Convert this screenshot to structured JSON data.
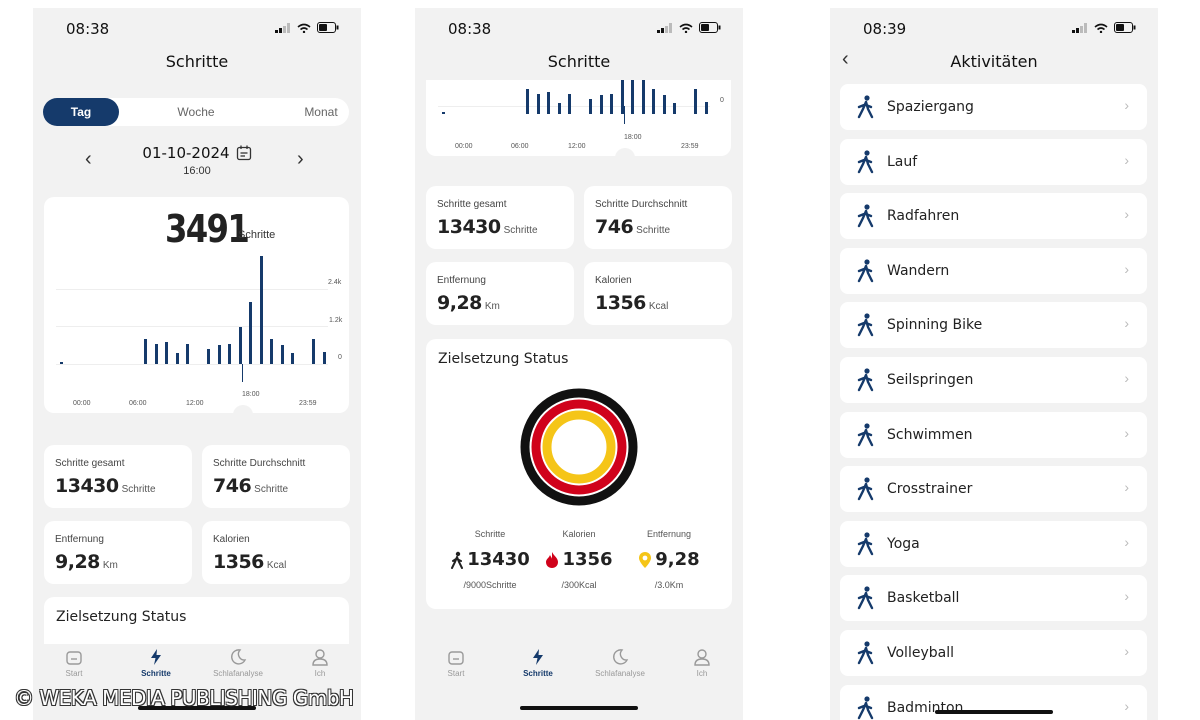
{
  "status_bar": {
    "time1": "08:38",
    "time2": "08:38",
    "time3": "08:39"
  },
  "screen1": {
    "title": "Schritte",
    "segments": [
      "Tag",
      "Woche",
      "Monat"
    ],
    "date": "01-10-2024",
    "time": "16:00",
    "steps_value": "3491",
    "steps_unit": "Schritte",
    "y_ticks": [
      "2.4k",
      "1.2k",
      "0"
    ],
    "x_ticks": [
      "00:00",
      "06:00",
      "12:00",
      "18:00",
      "23:59"
    ],
    "stats": {
      "total_label": "Schritte gesamt",
      "total_value": "13430",
      "total_unit": "Schritte",
      "avg_label": "Schritte Durchschnitt",
      "avg_value": "746",
      "avg_unit": "Schritte",
      "dist_label": "Entfernung",
      "dist_value": "9,28",
      "dist_unit": "Km",
      "cal_label": "Kalorien",
      "cal_value": "1356",
      "cal_unit": "Kcal"
    },
    "goal_title": "Zielsetzung Status"
  },
  "screen2": {
    "title": "Schritte",
    "y_tick": "0",
    "x_ticks": [
      "00:00",
      "06:00",
      "12:00",
      "18:00",
      "23:59"
    ],
    "stats": {
      "total_label": "Schritte gesamt",
      "total_value": "13430",
      "total_unit": "Schritte",
      "avg_label": "Schritte Durchschnitt",
      "avg_value": "746",
      "avg_unit": "Schritte",
      "dist_label": "Entfernung",
      "dist_value": "9,28",
      "dist_unit": "Km",
      "cal_label": "Kalorien",
      "cal_value": "1356",
      "cal_unit": "Kcal"
    },
    "goal_title": "Zielsetzung Status",
    "goals": [
      {
        "label": "Schritte",
        "value": "13430",
        "target": "/9000Schritte"
      },
      {
        "label": "Kalorien",
        "value": "1356",
        "target": "/300Kcal"
      },
      {
        "label": "Entfernung",
        "value": "9,28",
        "target": "/3.0Km"
      }
    ]
  },
  "screen3": {
    "title": "Aktivitäten",
    "activities": [
      "Spaziergang",
      "Lauf",
      "Radfahren",
      "Wandern",
      "Spinning Bike",
      "Seilspringen",
      "Schwimmen",
      "Crosstrainer",
      "Yoga",
      "Basketball",
      "Volleyball",
      "Badminton"
    ]
  },
  "tabbar": [
    "Start",
    "Schritte",
    "Schlafanalyse",
    "Ich"
  ],
  "watermark": "© WEKA MEDIA PUBLISHING GmbH",
  "colors": {
    "accent": "#153a6b",
    "ring_outer": "#111111",
    "ring_mid": "#d0021b",
    "ring_inner": "#f5c518"
  },
  "chart_data": {
    "type": "bar",
    "x_range": [
      "00:00",
      "23:59"
    ],
    "y_ticks": [
      "0",
      "1.2k",
      "2.4k"
    ],
    "bars_approx_steps": [
      20,
      0,
      0,
      0,
      0,
      0,
      0,
      0,
      800,
      650,
      700,
      350,
      650,
      0,
      500,
      600,
      650,
      1200,
      2000,
      3491,
      800,
      600,
      350,
      0,
      800,
      400
    ]
  }
}
